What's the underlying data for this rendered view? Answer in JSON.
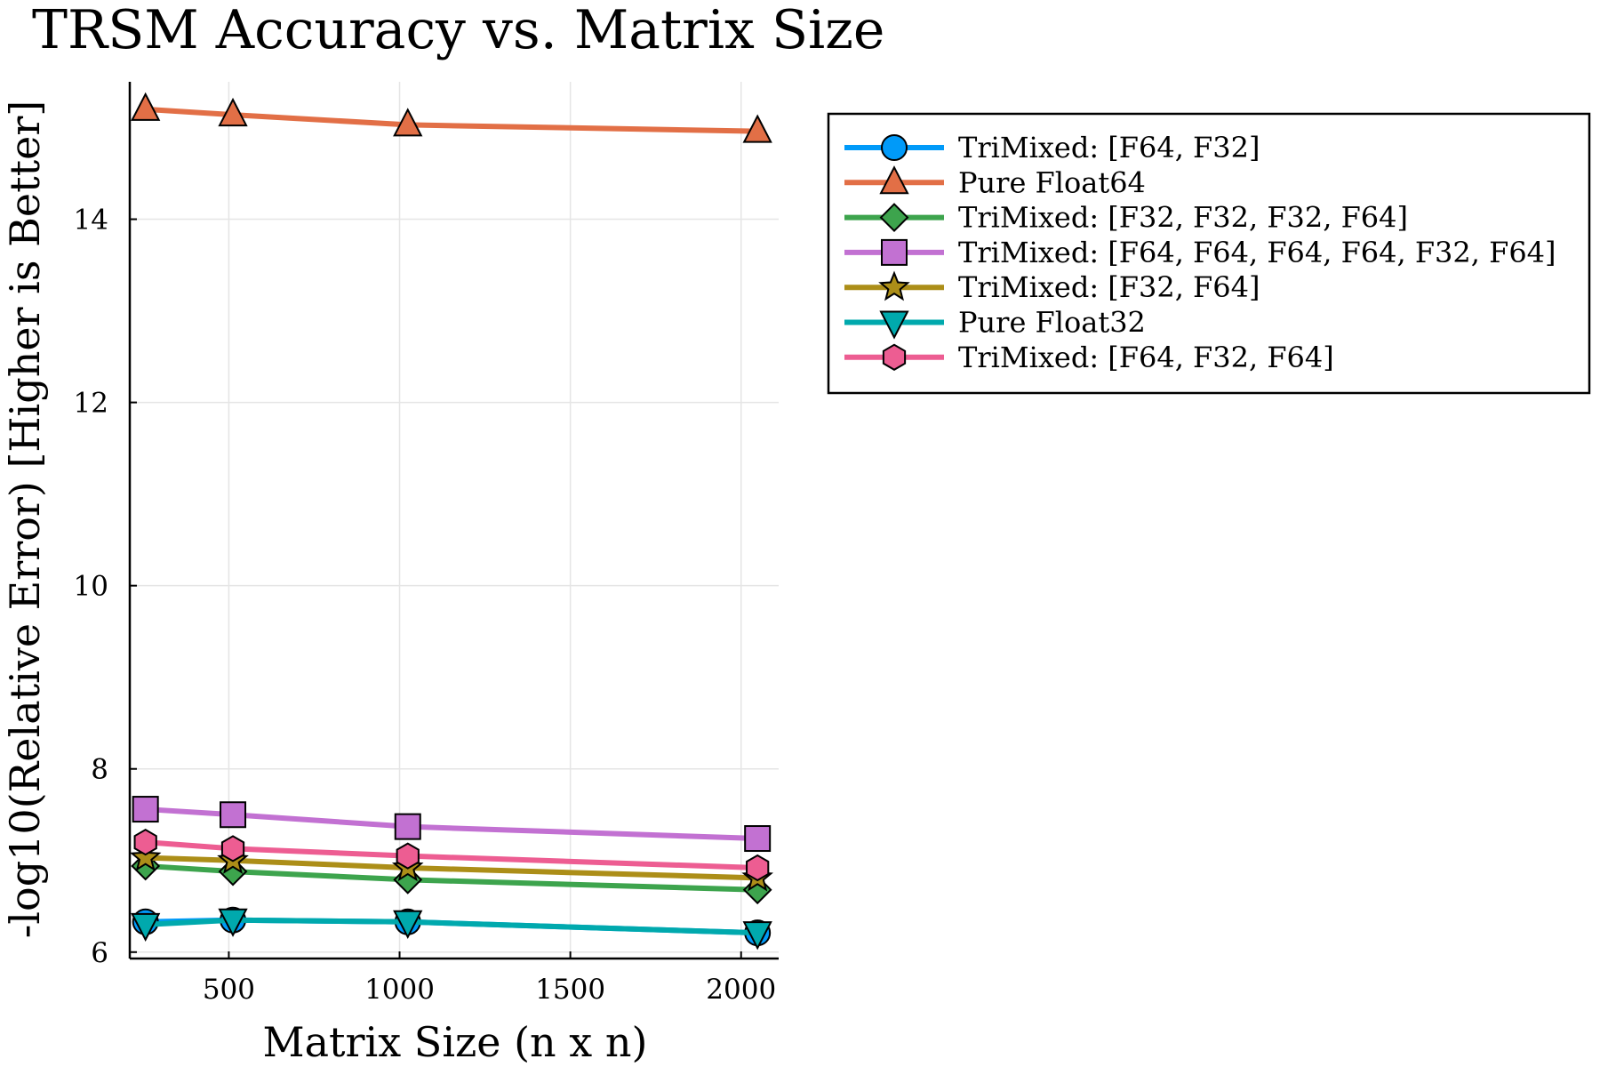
{
  "chart_data": {
    "type": "line",
    "title": "TRSM Accuracy vs. Matrix Size",
    "xlabel": "Matrix Size (n x n)",
    "ylabel": "-log10(Relative Error) [Higher is Better]",
    "xlim": [
      210,
      2110
    ],
    "ylim": [
      5.93,
      15.5
    ],
    "xticks": [
      500,
      1000,
      1500,
      2000
    ],
    "yticks": [
      6,
      8,
      10,
      12,
      14
    ],
    "grid": true,
    "legend_position": "outside-top-right",
    "x": [
      256,
      512,
      1024,
      2048
    ],
    "series": [
      {
        "name": "TriMixed: [F64, F32]",
        "color": "#009af9",
        "marker": "circle",
        "values": [
          6.33,
          6.35,
          6.33,
          6.21
        ]
      },
      {
        "name": "Pure Float64",
        "color": "#e26f46",
        "marker": "triangle-up",
        "values": [
          15.2,
          15.14,
          15.03,
          14.96
        ]
      },
      {
        "name": "TriMixed: [F32, F32, F32, F64]",
        "color": "#3da44d",
        "marker": "diamond",
        "values": [
          6.94,
          6.88,
          6.79,
          6.68
        ]
      },
      {
        "name": "TriMixed: [F64, F64, F64, F64, F32, F64]",
        "color": "#c271d2",
        "marker": "square",
        "values": [
          7.56,
          7.5,
          7.37,
          7.24
        ]
      },
      {
        "name": "TriMixed: [F32, F64]",
        "color": "#ac8e18",
        "marker": "star",
        "values": [
          7.03,
          7.0,
          6.92,
          6.81
        ]
      },
      {
        "name": "Pure Float32",
        "color": "#00a9ad",
        "marker": "triangle-down",
        "values": [
          6.3,
          6.35,
          6.33,
          6.21
        ]
      },
      {
        "name": "TriMixed: [F64, F32, F64]",
        "color": "#ed5d92",
        "marker": "hexagon",
        "values": [
          7.2,
          7.13,
          7.05,
          6.92
        ]
      }
    ]
  }
}
